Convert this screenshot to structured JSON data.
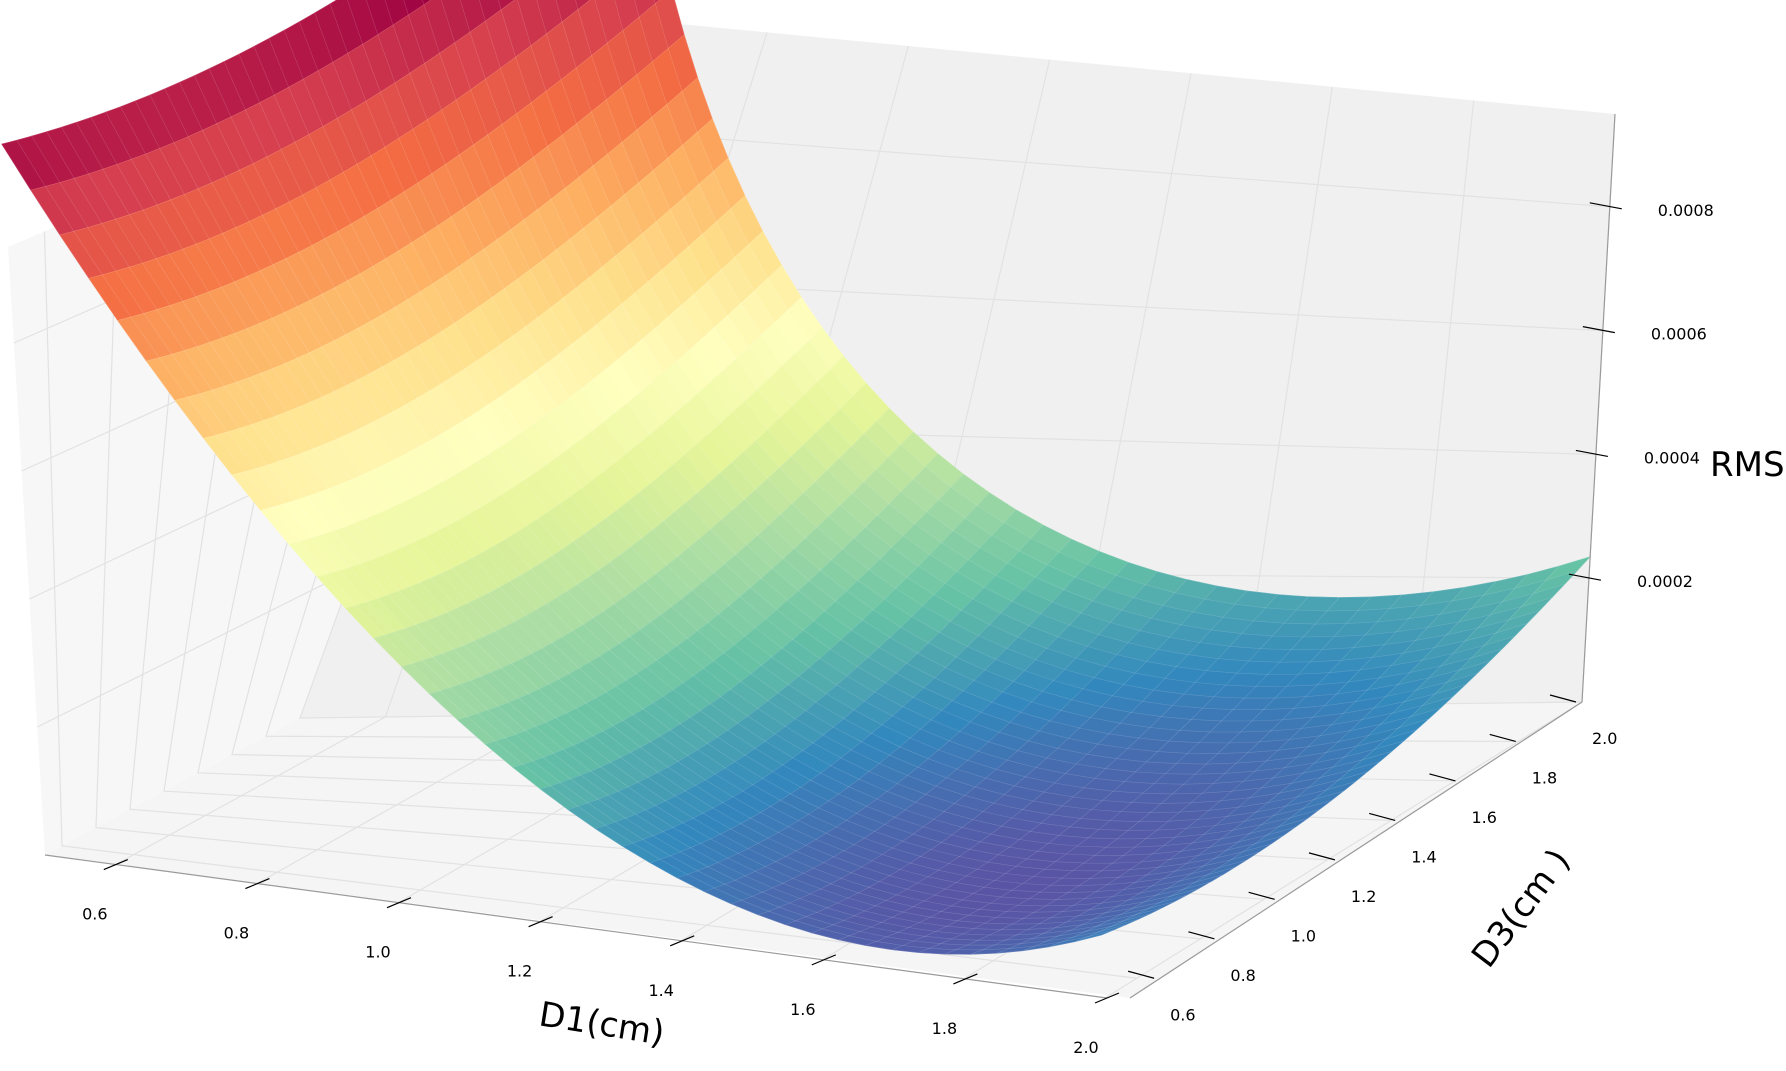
{
  "chart_data": {
    "type": "surface3d",
    "title": "",
    "xlabel": "D1(cm)",
    "ylabel": "D3(cm )",
    "zlabel": "RMS",
    "x_ticks": [
      "0.6",
      "0.8",
      "1.0",
      "1.2",
      "1.4",
      "1.6",
      "1.8",
      "2.0"
    ],
    "y_ticks": [
      "0.6",
      "0.8",
      "1.0",
      "1.2",
      "1.4",
      "1.6",
      "1.8",
      "2.0"
    ],
    "z_ticks": [
      "0.0002",
      "0.0004",
      "0.0006",
      "0.0008"
    ],
    "xlim": [
      0.5,
      2.0
    ],
    "ylim": [
      0.5,
      2.0
    ],
    "zlim": [
      0.0,
      0.00095
    ],
    "colormap": "Spectral_r",
    "grid": true,
    "corner_values": [
      {
        "D1": 0.5,
        "D3": 0.5,
        "RMS": 0.00092
      },
      {
        "D1": 2.0,
        "D3": 0.5,
        "RMS": 1e-05
      },
      {
        "D1": 0.5,
        "D3": 2.0,
        "RMS": 0.00059
      },
      {
        "D1": 2.0,
        "D3": 2.0,
        "RMS": 0.00016
      }
    ],
    "minimum": {
      "D1": 1.7,
      "D3": 0.9,
      "RMS": 1e-05
    }
  }
}
